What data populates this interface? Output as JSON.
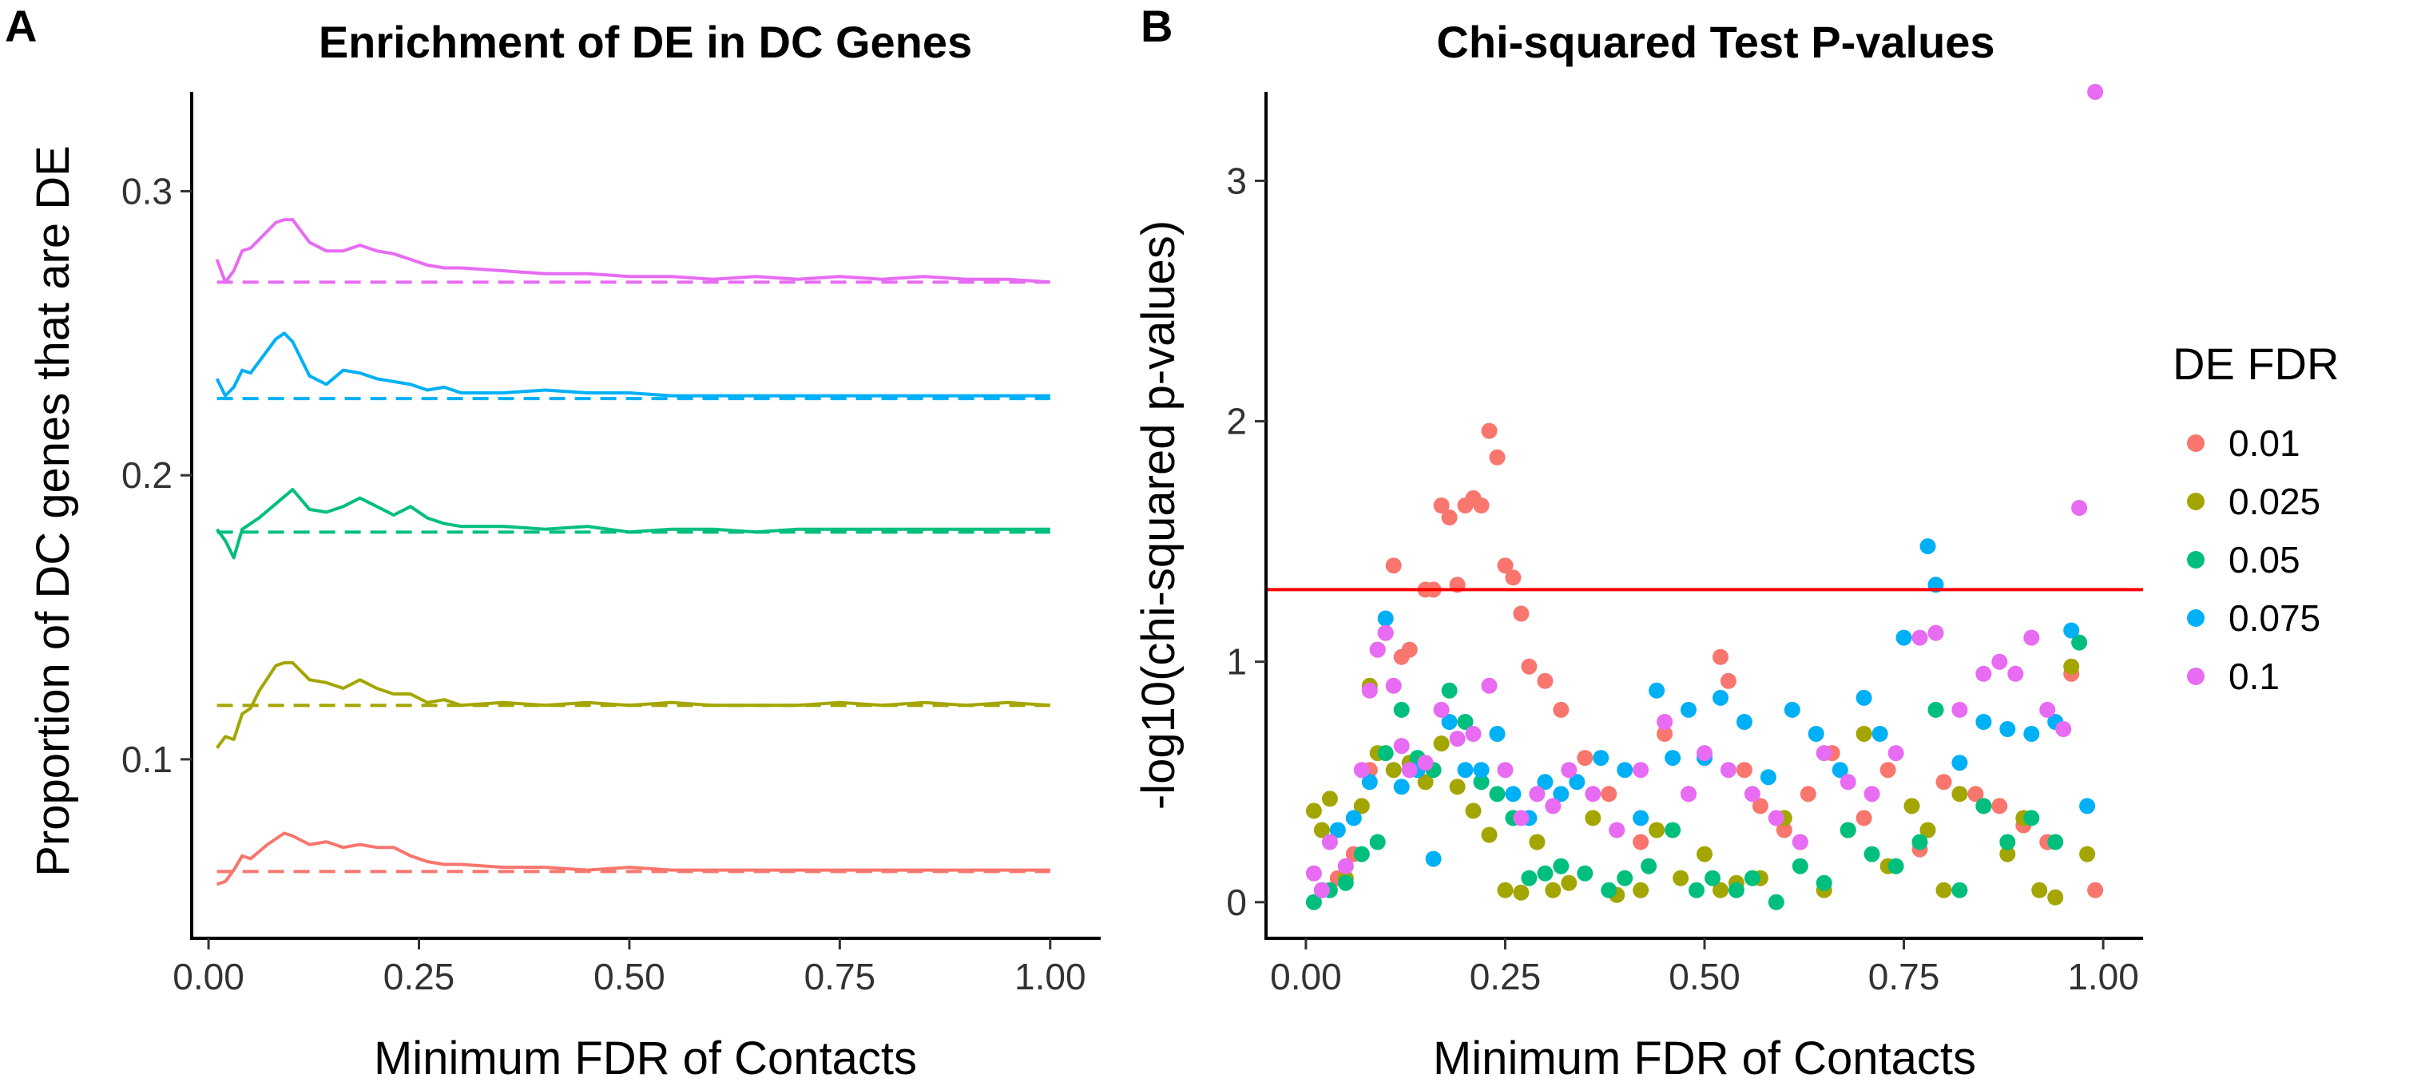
{
  "panels": {
    "a": {
      "letter": "A",
      "title": "Enrichment of DE in DC Genes"
    },
    "b": {
      "letter": "B",
      "title": "Chi-squared Test P-values"
    }
  },
  "chart_data": [
    {
      "type": "line",
      "title": "Enrichment of DE in DC Genes",
      "xlabel": "Minimum FDR of Contacts",
      "ylabel": "Proportion of DC genes that are DE",
      "xlim": [
        -0.02,
        1.06
      ],
      "ylim": [
        0.037,
        0.335
      ],
      "xticks": [
        0.0,
        0.25,
        0.5,
        0.75,
        1.0
      ],
      "xtick_labels": [
        "0.00",
        "0.25",
        "0.50",
        "0.75",
        "1.00"
      ],
      "yticks": [
        0.1,
        0.2,
        0.3
      ],
      "ytick_labels": [
        "0.1",
        "0.2",
        "0.3"
      ],
      "grid": false,
      "legend": "shared legend at right of figure (DE FDR)",
      "series": [
        {
          "name": "0.01",
          "color": "#F8766D",
          "baseline": 0.0605,
          "x": [
            0.01,
            0.02,
            0.03,
            0.04,
            0.05,
            0.07,
            0.09,
            0.1,
            0.12,
            0.14,
            0.16,
            0.18,
            0.2,
            0.22,
            0.24,
            0.26,
            0.28,
            0.3,
            0.35,
            0.4,
            0.45,
            0.5,
            0.55,
            0.6,
            0.65,
            0.7,
            0.75,
            0.8,
            0.85,
            0.9,
            0.95,
            1.0
          ],
          "y": [
            0.056,
            0.057,
            0.061,
            0.066,
            0.065,
            0.07,
            0.074,
            0.073,
            0.07,
            0.071,
            0.069,
            0.07,
            0.069,
            0.069,
            0.066,
            0.064,
            0.063,
            0.063,
            0.062,
            0.062,
            0.061,
            0.062,
            0.061,
            0.061,
            0.061,
            0.061,
            0.061,
            0.061,
            0.061,
            0.061,
            0.061,
            0.061
          ]
        },
        {
          "name": "0.025",
          "color": "#A3A500",
          "baseline": 0.119,
          "x": [
            0.01,
            0.02,
            0.03,
            0.04,
            0.05,
            0.06,
            0.08,
            0.09,
            0.1,
            0.12,
            0.14,
            0.16,
            0.18,
            0.2,
            0.22,
            0.24,
            0.26,
            0.28,
            0.3,
            0.35,
            0.4,
            0.45,
            0.5,
            0.55,
            0.6,
            0.65,
            0.7,
            0.75,
            0.8,
            0.85,
            0.9,
            0.95,
            1.0
          ],
          "y": [
            0.104,
            0.108,
            0.107,
            0.116,
            0.118,
            0.124,
            0.133,
            0.134,
            0.134,
            0.128,
            0.127,
            0.125,
            0.128,
            0.125,
            0.123,
            0.123,
            0.12,
            0.121,
            0.119,
            0.12,
            0.119,
            0.12,
            0.119,
            0.12,
            0.119,
            0.119,
            0.119,
            0.12,
            0.119,
            0.12,
            0.119,
            0.12,
            0.119
          ]
        },
        {
          "name": "0.05",
          "color": "#00BF7D",
          "baseline": 0.18,
          "x": [
            0.01,
            0.02,
            0.03,
            0.04,
            0.05,
            0.06,
            0.08,
            0.1,
            0.12,
            0.14,
            0.16,
            0.18,
            0.2,
            0.22,
            0.24,
            0.26,
            0.28,
            0.3,
            0.35,
            0.4,
            0.45,
            0.5,
            0.55,
            0.6,
            0.65,
            0.7,
            0.75,
            0.8,
            0.85,
            0.9,
            0.95,
            1.0
          ],
          "y": [
            0.181,
            0.177,
            0.171,
            0.181,
            0.183,
            0.185,
            0.19,
            0.195,
            0.188,
            0.187,
            0.189,
            0.192,
            0.189,
            0.186,
            0.189,
            0.185,
            0.183,
            0.182,
            0.182,
            0.181,
            0.182,
            0.18,
            0.181,
            0.181,
            0.18,
            0.181,
            0.181,
            0.181,
            0.181,
            0.181,
            0.181,
            0.181
          ]
        },
        {
          "name": "0.075",
          "color": "#00B0F6",
          "baseline": 0.227,
          "x": [
            0.01,
            0.02,
            0.03,
            0.04,
            0.05,
            0.06,
            0.08,
            0.09,
            0.1,
            0.12,
            0.14,
            0.16,
            0.18,
            0.2,
            0.22,
            0.24,
            0.26,
            0.28,
            0.3,
            0.35,
            0.4,
            0.45,
            0.5,
            0.55,
            0.6,
            0.65,
            0.7,
            0.75,
            0.8,
            0.85,
            0.9,
            0.95,
            1.0
          ],
          "y": [
            0.234,
            0.228,
            0.231,
            0.237,
            0.236,
            0.24,
            0.248,
            0.25,
            0.247,
            0.235,
            0.232,
            0.237,
            0.236,
            0.234,
            0.233,
            0.232,
            0.23,
            0.231,
            0.229,
            0.229,
            0.23,
            0.229,
            0.229,
            0.228,
            0.228,
            0.228,
            0.228,
            0.228,
            0.228,
            0.228,
            0.228,
            0.228,
            0.228
          ]
        },
        {
          "name": "0.1",
          "color": "#E76BF3",
          "baseline": 0.268,
          "x": [
            0.01,
            0.02,
            0.03,
            0.04,
            0.05,
            0.06,
            0.08,
            0.09,
            0.1,
            0.12,
            0.14,
            0.16,
            0.18,
            0.2,
            0.22,
            0.24,
            0.26,
            0.28,
            0.3,
            0.35,
            0.4,
            0.45,
            0.5,
            0.55,
            0.6,
            0.65,
            0.7,
            0.75,
            0.8,
            0.85,
            0.9,
            0.95,
            1.0
          ],
          "y": [
            0.276,
            0.268,
            0.272,
            0.279,
            0.28,
            0.283,
            0.289,
            0.29,
            0.29,
            0.282,
            0.279,
            0.279,
            0.281,
            0.279,
            0.278,
            0.276,
            0.274,
            0.273,
            0.273,
            0.272,
            0.271,
            0.271,
            0.27,
            0.27,
            0.269,
            0.27,
            0.269,
            0.27,
            0.269,
            0.27,
            0.269,
            0.269,
            0.268
          ]
        }
      ]
    },
    {
      "type": "scatter",
      "title": "Chi-squared Test P-values",
      "xlabel": "Minimum FDR of Contacts",
      "ylabel": "-log10(chi-squared p-values)",
      "xlim": [
        -0.05,
        1.05
      ],
      "ylim": [
        -0.15,
        3.37
      ],
      "xticks": [
        0.0,
        0.25,
        0.5,
        0.75,
        1.0
      ],
      "xtick_labels": [
        "0.00",
        "0.25",
        "0.50",
        "0.75",
        "1.00"
      ],
      "yticks": [
        0,
        1,
        2,
        3
      ],
      "ytick_labels": [
        "0",
        "1",
        "2",
        "3"
      ],
      "reference_line": {
        "y": 1.3,
        "color": "#FF0000"
      },
      "grid": false,
      "legend": {
        "title": "DE FDR",
        "position": "right",
        "entries": [
          {
            "label": "0.01",
            "color": "#F8766D"
          },
          {
            "label": "0.025",
            "color": "#A3A500"
          },
          {
            "label": "0.05",
            "color": "#00BF7D"
          },
          {
            "label": "0.075",
            "color": "#00B0F6"
          },
          {
            "label": "0.1",
            "color": "#E76BF3"
          }
        ]
      },
      "series": [
        {
          "name": "0.01",
          "color": "#F8766D",
          "x": [
            0.02,
            0.04,
            0.06,
            0.08,
            0.09,
            0.1,
            0.11,
            0.12,
            0.13,
            0.14,
            0.15,
            0.16,
            0.17,
            0.18,
            0.19,
            0.2,
            0.21,
            0.22,
            0.23,
            0.24,
            0.25,
            0.26,
            0.27,
            0.28,
            0.3,
            0.32,
            0.35,
            0.38,
            0.42,
            0.45,
            0.48,
            0.5,
            0.52,
            0.53,
            0.55,
            0.57,
            0.6,
            0.63,
            0.66,
            0.7,
            0.73,
            0.77,
            0.8,
            0.84,
            0.87,
            0.9,
            0.93,
            0.96,
            0.99
          ],
          "y": [
            0.05,
            0.1,
            0.2,
            0.55,
            1.05,
            1.12,
            1.4,
            1.02,
            1.05,
            0.58,
            1.3,
            1.3,
            1.65,
            1.6,
            1.32,
            1.65,
            1.68,
            1.65,
            1.96,
            1.85,
            1.4,
            1.35,
            1.2,
            0.98,
            0.92,
            0.8,
            0.6,
            0.45,
            0.25,
            0.7,
            0.45,
            0.6,
            1.02,
            0.92,
            0.55,
            0.4,
            0.3,
            0.45,
            0.62,
            0.35,
            0.55,
            0.22,
            0.5,
            0.45,
            0.4,
            0.32,
            0.25,
            0.95,
            0.05
          ]
        },
        {
          "name": "0.025",
          "color": "#A3A500",
          "x": [
            0.01,
            0.02,
            0.03,
            0.05,
            0.07,
            0.08,
            0.09,
            0.11,
            0.13,
            0.15,
            0.17,
            0.19,
            0.21,
            0.23,
            0.25,
            0.27,
            0.29,
            0.31,
            0.33,
            0.36,
            0.39,
            0.42,
            0.44,
            0.47,
            0.5,
            0.52,
            0.54,
            0.57,
            0.6,
            0.62,
            0.65,
            0.68,
            0.7,
            0.73,
            0.76,
            0.78,
            0.8,
            0.82,
            0.85,
            0.88,
            0.9,
            0.92,
            0.94,
            0.96,
            0.98
          ],
          "y": [
            0.38,
            0.3,
            0.43,
            0.1,
            0.4,
            0.9,
            0.62,
            0.55,
            0.58,
            0.5,
            0.66,
            0.48,
            0.38,
            0.28,
            0.05,
            0.04,
            0.25,
            0.05,
            0.08,
            0.35,
            0.03,
            0.05,
            0.3,
            0.1,
            0.2,
            0.05,
            0.08,
            0.1,
            0.35,
            0.25,
            0.05,
            0.3,
            0.7,
            0.15,
            0.4,
            0.3,
            0.05,
            0.45,
            0.4,
            0.2,
            0.35,
            0.05,
            0.02,
            0.98,
            0.2
          ]
        },
        {
          "name": "0.05",
          "color": "#00BF7D",
          "x": [
            0.01,
            0.03,
            0.05,
            0.07,
            0.09,
            0.1,
            0.12,
            0.14,
            0.16,
            0.18,
            0.2,
            0.22,
            0.24,
            0.26,
            0.28,
            0.3,
            0.32,
            0.35,
            0.38,
            0.4,
            0.43,
            0.46,
            0.49,
            0.51,
            0.54,
            0.56,
            0.59,
            0.62,
            0.65,
            0.68,
            0.71,
            0.74,
            0.77,
            0.79,
            0.82,
            0.85,
            0.88,
            0.91,
            0.94,
            0.97
          ],
          "y": [
            0.0,
            0.05,
            0.08,
            0.2,
            0.25,
            0.62,
            0.8,
            0.6,
            0.55,
            0.88,
            0.75,
            0.5,
            0.45,
            0.35,
            0.1,
            0.12,
            0.15,
            0.12,
            0.05,
            0.1,
            0.15,
            0.3,
            0.05,
            0.1,
            0.05,
            0.1,
            0.0,
            0.15,
            0.08,
            0.3,
            0.2,
            0.15,
            0.25,
            0.8,
            0.05,
            0.4,
            0.25,
            0.35,
            0.25,
            1.08
          ]
        },
        {
          "name": "0.075",
          "color": "#00B0F6",
          "x": [
            0.02,
            0.04,
            0.06,
            0.08,
            0.1,
            0.12,
            0.14,
            0.16,
            0.18,
            0.2,
            0.22,
            0.24,
            0.26,
            0.28,
            0.3,
            0.32,
            0.34,
            0.37,
            0.4,
            0.42,
            0.44,
            0.46,
            0.48,
            0.5,
            0.52,
            0.55,
            0.58,
            0.61,
            0.64,
            0.67,
            0.7,
            0.72,
            0.75,
            0.78,
            0.79,
            0.82,
            0.85,
            0.88,
            0.91,
            0.94,
            0.96,
            0.98
          ],
          "y": [
            0.05,
            0.3,
            0.35,
            0.5,
            1.18,
            0.48,
            0.55,
            0.18,
            0.75,
            0.55,
            0.55,
            0.7,
            0.45,
            0.35,
            0.5,
            0.45,
            0.5,
            0.6,
            0.55,
            0.35,
            0.88,
            0.6,
            0.8,
            0.6,
            0.85,
            0.75,
            0.52,
            0.8,
            0.7,
            0.55,
            0.85,
            0.7,
            1.1,
            1.48,
            1.32,
            0.58,
            0.75,
            0.72,
            0.7,
            0.75,
            1.13,
            0.4
          ]
        },
        {
          "name": "0.1",
          "color": "#E76BF3",
          "x": [
            0.01,
            0.02,
            0.03,
            0.05,
            0.07,
            0.08,
            0.09,
            0.1,
            0.11,
            0.12,
            0.13,
            0.15,
            0.17,
            0.19,
            0.21,
            0.23,
            0.25,
            0.27,
            0.29,
            0.31,
            0.33,
            0.36,
            0.39,
            0.42,
            0.45,
            0.48,
            0.5,
            0.53,
            0.56,
            0.59,
            0.62,
            0.65,
            0.68,
            0.71,
            0.74,
            0.77,
            0.79,
            0.82,
            0.85,
            0.87,
            0.89,
            0.91,
            0.93,
            0.95,
            0.97,
            0.99
          ],
          "y": [
            0.12,
            0.05,
            0.25,
            0.15,
            0.55,
            0.88,
            1.05,
            1.12,
            0.9,
            0.65,
            0.55,
            0.58,
            0.8,
            0.68,
            0.7,
            0.9,
            0.55,
            0.35,
            0.45,
            0.4,
            0.55,
            0.45,
            0.3,
            0.55,
            0.75,
            0.45,
            0.62,
            0.55,
            0.45,
            0.35,
            0.25,
            0.62,
            0.5,
            0.45,
            0.62,
            1.1,
            1.12,
            0.8,
            0.95,
            1.0,
            0.95,
            1.1,
            0.8,
            0.72,
            1.64,
            3.37
          ]
        }
      ]
    }
  ]
}
